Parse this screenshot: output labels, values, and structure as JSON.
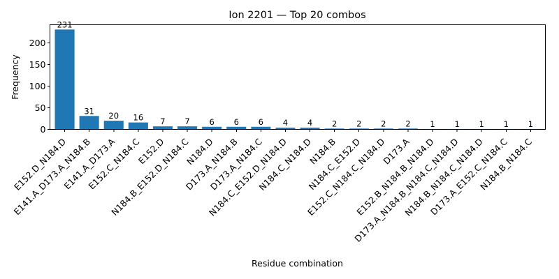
{
  "chart_data": {
    "type": "bar",
    "title": "Ion 2201 — Top 20 combos",
    "xlabel": "Residue combination",
    "ylabel": "Frequency",
    "ylim": [
      0,
      242
    ],
    "yticks": [
      0,
      50,
      100,
      150,
      200
    ],
    "grid": false,
    "bar_color": "#1f77b4",
    "categories": [
      "E152.D_N184.D",
      "E141.A_D173.A_N184.B",
      "E141.A_D173.A",
      "E152.C_N184.C",
      "E152.D",
      "N184.B_E152.D_N184.C",
      "N184.D",
      "D173.A_N184.B",
      "D173.A_N184.C",
      "N184.C_E152.D_N184.D",
      "N184.C_N184.D",
      "N184.B",
      "N184.C_E152.D",
      "E152.C_N184.C_N184.D",
      "D173.A",
      "E152.B_N184.B_N184.D",
      "D173.A_N184.B_N184.C_N184.D",
      "N184.B_N184.C_N184.D",
      "D173.A_E152.C_N184.C",
      "N184.B_N184.C"
    ],
    "values": [
      231,
      31,
      20,
      16,
      7,
      7,
      6,
      6,
      6,
      4,
      4,
      2,
      2,
      2,
      2,
      1,
      1,
      1,
      1,
      1
    ]
  }
}
